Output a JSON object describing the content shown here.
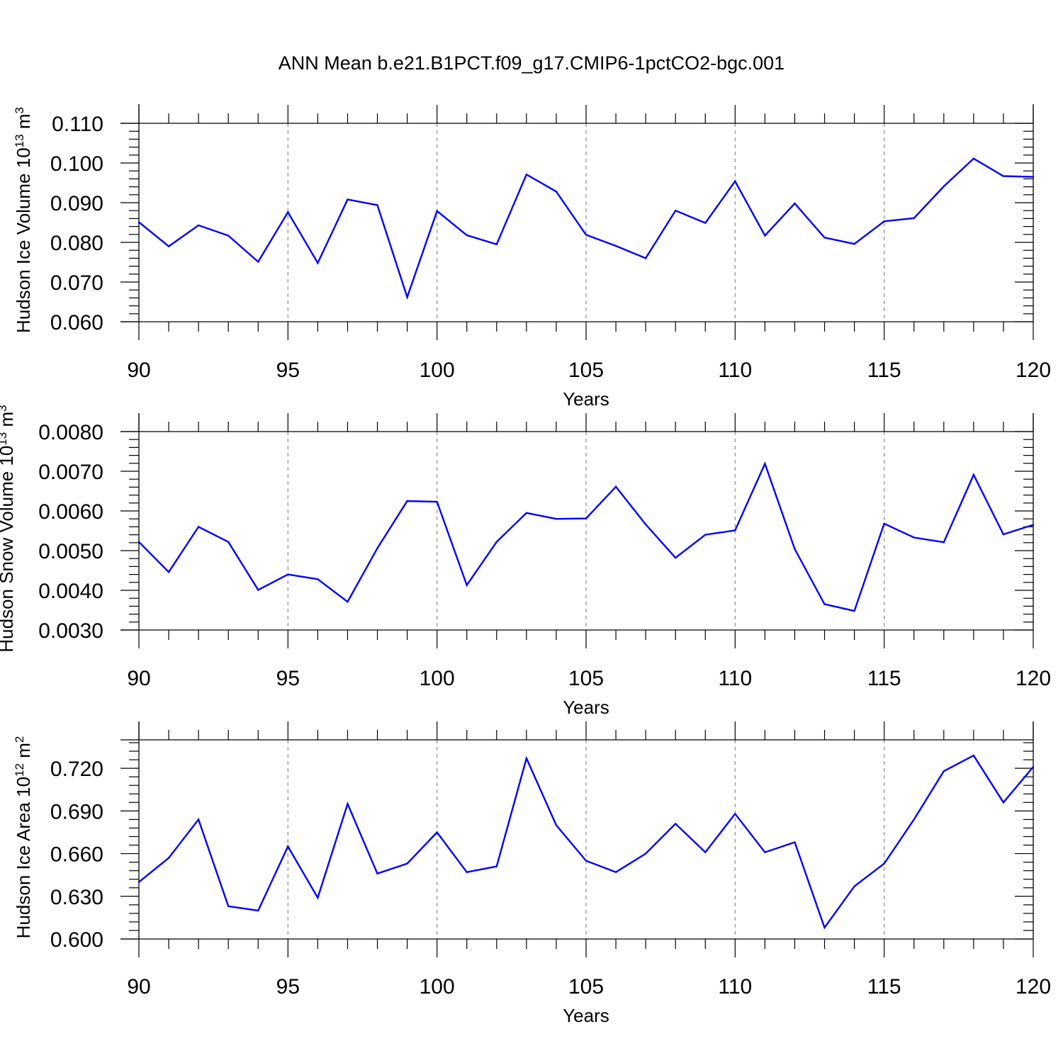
{
  "figure": {
    "title": "ANN Mean b.e21.B1PCT.f09_g17.CMIP6-1pctCO2-bgc.001"
  },
  "chart_data": [
    {
      "type": "line",
      "title": "",
      "xlabel": "Years",
      "ylabel_main": "Hudson Ice Volume 10",
      "ylabel_exp": "13",
      "ylabel_unit": " m",
      "ylabel_unit_exp": "3",
      "xlim": [
        90,
        120
      ],
      "ylim": [
        0.06,
        0.11
      ],
      "xticks": [
        90,
        95,
        100,
        105,
        110,
        115,
        120
      ],
      "xtick_labels": [
        "90",
        "95",
        "100",
        "105",
        "110",
        "115",
        "120"
      ],
      "yticks": [
        0.06,
        0.07,
        0.08,
        0.09,
        0.1,
        0.11
      ],
      "ytick_labels": [
        "0.060",
        "0.070",
        "0.080",
        "0.090",
        "0.100",
        "0.110"
      ],
      "grid_x": "dashed at major x ticks",
      "line_color": "#0000ff",
      "x": [
        90,
        91,
        92,
        93,
        94,
        95,
        96,
        97,
        98,
        99,
        100,
        101,
        102,
        103,
        104,
        105,
        106,
        107,
        108,
        109,
        110,
        111,
        112,
        113,
        114,
        115,
        116,
        117,
        118,
        119,
        120
      ],
      "values": [
        0.0851,
        0.079,
        0.0843,
        0.0817,
        0.0751,
        0.0876,
        0.0748,
        0.0908,
        0.0894,
        0.0662,
        0.0879,
        0.0818,
        0.0795,
        0.0971,
        0.0928,
        0.0819,
        0.0791,
        0.076,
        0.088,
        0.0849,
        0.0954,
        0.0817,
        0.0898,
        0.0812,
        0.0796,
        0.0853,
        0.0861,
        0.0941,
        0.1011,
        0.0967,
        0.0965
      ]
    },
    {
      "type": "line",
      "title": "",
      "xlabel": "Years",
      "ylabel_main": "Hudson Snow Volume 10",
      "ylabel_exp": "13",
      "ylabel_unit": " m",
      "ylabel_unit_exp": "3",
      "xlim": [
        90,
        120
      ],
      "ylim": [
        0.003,
        0.008
      ],
      "xticks": [
        90,
        95,
        100,
        105,
        110,
        115,
        120
      ],
      "xtick_labels": [
        "90",
        "95",
        "100",
        "105",
        "110",
        "115",
        "120"
      ],
      "yticks": [
        0.003,
        0.004,
        0.005,
        0.006,
        0.007,
        0.008
      ],
      "ytick_labels": [
        "0.0030",
        "0.0040",
        "0.0050",
        "0.0060",
        "0.0070",
        "0.0080"
      ],
      "grid_x": "dashed at major x ticks",
      "line_color": "#0000ff",
      "x": [
        90,
        91,
        92,
        93,
        94,
        95,
        96,
        97,
        98,
        99,
        100,
        101,
        102,
        103,
        104,
        105,
        106,
        107,
        108,
        109,
        110,
        111,
        112,
        113,
        114,
        115,
        116,
        117,
        118,
        119,
        120
      ],
      "values": [
        0.00522,
        0.00446,
        0.0056,
        0.00522,
        0.00401,
        0.0044,
        0.00428,
        0.00371,
        0.00506,
        0.00625,
        0.00623,
        0.00413,
        0.00522,
        0.00595,
        0.0058,
        0.00581,
        0.00661,
        0.00566,
        0.00482,
        0.0054,
        0.00551,
        0.00719,
        0.00504,
        0.00365,
        0.00348,
        0.00568,
        0.00533,
        0.00521,
        0.00691,
        0.00541,
        0.00565
      ]
    },
    {
      "type": "line",
      "title": "",
      "xlabel": "Years",
      "ylabel_main": "Hudson Ice Area 10",
      "ylabel_exp": "12",
      "ylabel_unit": " m",
      "ylabel_unit_exp": "2",
      "xlim": [
        90,
        120
      ],
      "ylim": [
        0.6,
        0.74
      ],
      "xticks": [
        90,
        95,
        100,
        105,
        110,
        115,
        120
      ],
      "xtick_labels": [
        "90",
        "95",
        "100",
        "105",
        "110",
        "115",
        "120"
      ],
      "yticks": [
        0.6,
        0.63,
        0.66,
        0.69,
        0.72
      ],
      "ytick_labels": [
        "0.600",
        "0.630",
        "0.660",
        "0.690",
        "0.720"
      ],
      "grid_x": "dashed at major x ticks",
      "line_color": "#0000ff",
      "x": [
        90,
        91,
        92,
        93,
        94,
        95,
        96,
        97,
        98,
        99,
        100,
        101,
        102,
        103,
        104,
        105,
        106,
        107,
        108,
        109,
        110,
        111,
        112,
        113,
        114,
        115,
        116,
        117,
        118,
        119,
        120
      ],
      "values": [
        0.64,
        0.657,
        0.684,
        0.623,
        0.62,
        0.665,
        0.629,
        0.695,
        0.646,
        0.653,
        0.675,
        0.647,
        0.651,
        0.727,
        0.68,
        0.655,
        0.647,
        0.66,
        0.681,
        0.661,
        0.688,
        0.661,
        0.668,
        0.608,
        0.637,
        0.653,
        0.684,
        0.718,
        0.729,
        0.696,
        0.721
      ]
    }
  ]
}
